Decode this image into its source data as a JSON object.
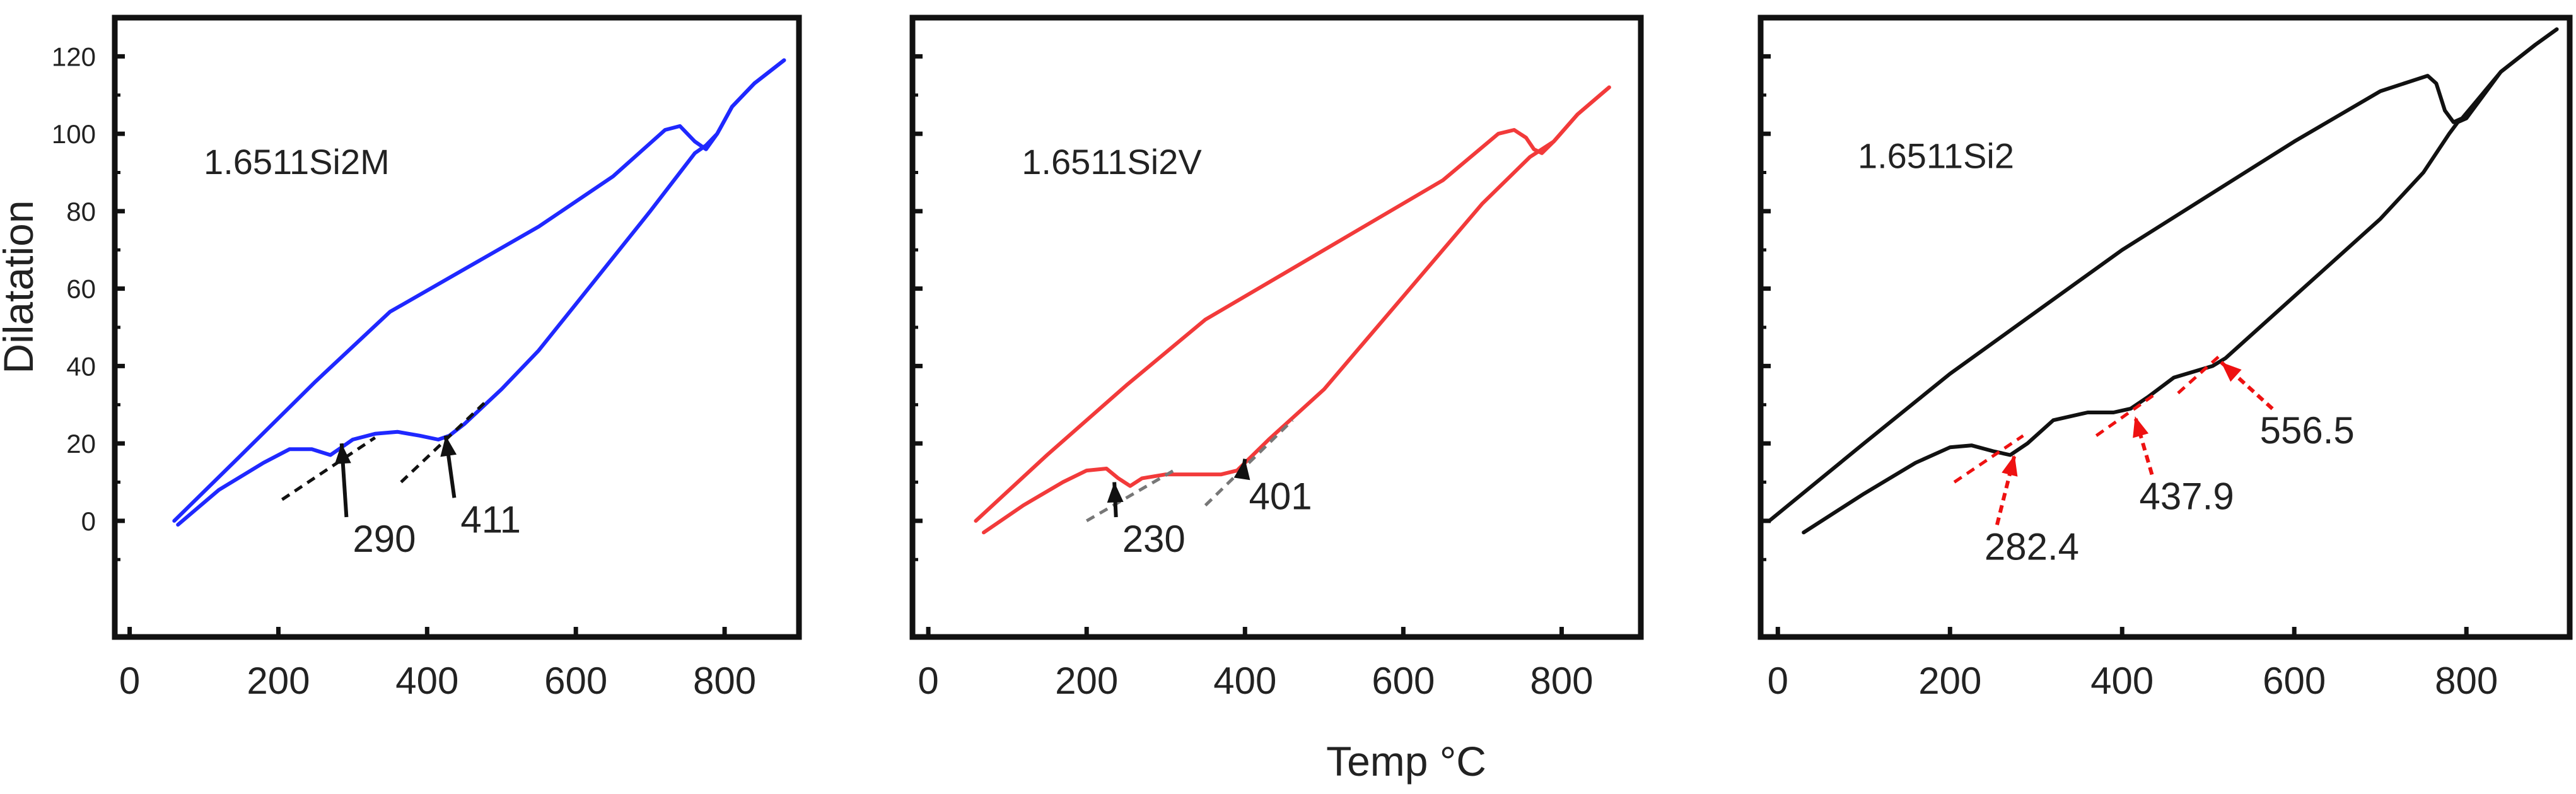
{
  "figure": {
    "ylabel": "Dilatation",
    "xlabel": "Temp °C"
  },
  "colors": {
    "blue": "#1f28ff",
    "red": "#f23a3a",
    "black": "#111111",
    "tangent_black": "#111111",
    "tangent_gray": "#777777",
    "tangent_red": "#ee1111"
  },
  "chart_data": [
    {
      "type": "line",
      "title": "1.6511Si2M",
      "xlim": [
        -20,
        900
      ],
      "ylim": [
        -30,
        130
      ],
      "xticks": [
        "0",
        "200",
        "400",
        "600",
        "800"
      ],
      "yticks": [
        "0",
        "20",
        "40",
        "60",
        "80",
        "100",
        "120"
      ],
      "color": "blue",
      "series": [
        {
          "x": [
            60,
            150,
            250,
            350,
            450,
            550,
            650,
            720,
            740,
            760,
            775,
            790,
            810,
            840,
            880
          ],
          "y": [
            0,
            17,
            36,
            54,
            65,
            76,
            89,
            101,
            102,
            98,
            96,
            100,
            107,
            113,
            119
          ]
        },
        {
          "x": [
            65,
            120,
            180,
            215,
            245,
            270,
            285,
            300,
            330,
            360,
            390,
            415,
            430,
            450,
            500,
            550,
            600,
            650,
            700,
            740,
            760,
            775,
            790,
            810,
            840,
            880
          ],
          "y": [
            -1,
            8,
            15,
            18.5,
            18.5,
            17,
            19,
            21,
            22.5,
            23,
            22,
            21,
            22,
            25,
            34,
            44,
            56,
            68,
            80,
            90,
            95,
            97,
            100,
            107,
            113,
            119
          ]
        }
      ],
      "tangents": [
        {
          "x": [
            205,
            330
          ],
          "y": [
            5.5,
            21.5
          ]
        },
        {
          "x": [
            365,
            480
          ],
          "y": [
            10,
            31
          ]
        }
      ],
      "annotations": [
        {
          "text": "290",
          "x": 300,
          "y": -8,
          "tip": [
            285,
            20
          ]
        },
        {
          "text": "411",
          "x": 445,
          "y": -3,
          "tip": [
            425,
            22
          ]
        }
      ]
    },
    {
      "type": "line",
      "title": "1.6511Si2V",
      "xlim": [
        -20,
        900
      ],
      "ylim": [
        -30,
        130
      ],
      "xticks": [
        "0",
        "200",
        "400",
        "600",
        "800"
      ],
      "yticks": [
        "0",
        "20",
        "40",
        "60",
        "80",
        "100",
        "120"
      ],
      "color": "red",
      "series": [
        {
          "x": [
            60,
            150,
            250,
            350,
            450,
            550,
            650,
            720,
            740,
            755,
            765,
            775,
            790,
            820,
            860
          ],
          "y": [
            0,
            17,
            35,
            52,
            64,
            76,
            88,
            100,
            101,
            99,
            96,
            95,
            98,
            105,
            112
          ]
        },
        {
          "x": [
            70,
            120,
            170,
            200,
            225,
            240,
            255,
            270,
            300,
            340,
            370,
            390,
            405,
            430,
            500,
            550,
            600,
            650,
            700,
            740,
            760,
            775,
            790,
            820,
            860
          ],
          "y": [
            -3,
            4,
            10,
            13,
            13.5,
            11,
            9,
            11,
            12,
            12,
            12,
            13,
            16,
            21,
            34,
            46,
            58,
            70,
            82,
            90,
            94,
            96,
            98,
            105,
            112
          ]
        }
      ],
      "tangents": [
        {
          "x": [
            200,
            310
          ],
          "y": [
            0,
            13
          ]
        },
        {
          "x": [
            350,
            460
          ],
          "y": [
            4,
            26
          ]
        }
      ],
      "annotations": [
        {
          "text": "230",
          "x": 245,
          "y": -8,
          "tip": [
            235,
            10
          ]
        },
        {
          "text": "401",
          "x": 405,
          "y": 3,
          "tip": [
            400,
            16
          ]
        }
      ]
    },
    {
      "type": "line",
      "title": "1.6511Si2",
      "xlim": [
        -20,
        920
      ],
      "ylim": [
        -30,
        130
      ],
      "xticks": [
        "0",
        "200",
        "400",
        "600",
        "800"
      ],
      "yticks": [],
      "color": "black",
      "series": [
        {
          "x": [
            -10,
            100,
            200,
            300,
            400,
            500,
            600,
            700,
            755,
            765,
            775,
            785,
            795,
            810,
            840,
            880,
            905
          ],
          "y": [
            0,
            20,
            38,
            54,
            70,
            84,
            98,
            111,
            115,
            113,
            106,
            103,
            104,
            108,
            116,
            123,
            127
          ]
        },
        {
          "x": [
            30,
            100,
            160,
            200,
            225,
            250,
            270,
            290,
            320,
            360,
            390,
            410,
            430,
            460,
            490,
            505,
            520,
            560,
            600,
            650,
            700,
            750,
            780,
            790,
            800,
            840,
            880,
            905
          ],
          "y": [
            -3,
            7,
            15,
            19,
            19.5,
            18,
            17,
            20,
            26,
            28,
            28,
            29,
            32,
            37,
            39,
            40,
            42,
            50,
            58,
            68,
            78,
            90,
            100,
            103,
            104,
            116,
            123,
            127
          ]
        }
      ],
      "tangents": [
        {
          "x": [
            205,
            285
          ],
          "y": [
            10,
            22
          ]
        },
        {
          "x": [
            370,
            440
          ],
          "y": [
            22,
            33
          ]
        },
        {
          "x": [
            465,
            515
          ],
          "y": [
            33,
            43
          ]
        }
      ],
      "annotations": [
        {
          "text": "282.4",
          "x": 240,
          "y": -10,
          "tip": [
            275,
            17
          ]
        },
        {
          "text": "437.9",
          "x": 420,
          "y": 3,
          "tip": [
            415,
            27
          ]
        },
        {
          "text": "556.5",
          "x": 560,
          "y": 20,
          "tip": [
            515,
            41
          ]
        }
      ]
    }
  ]
}
